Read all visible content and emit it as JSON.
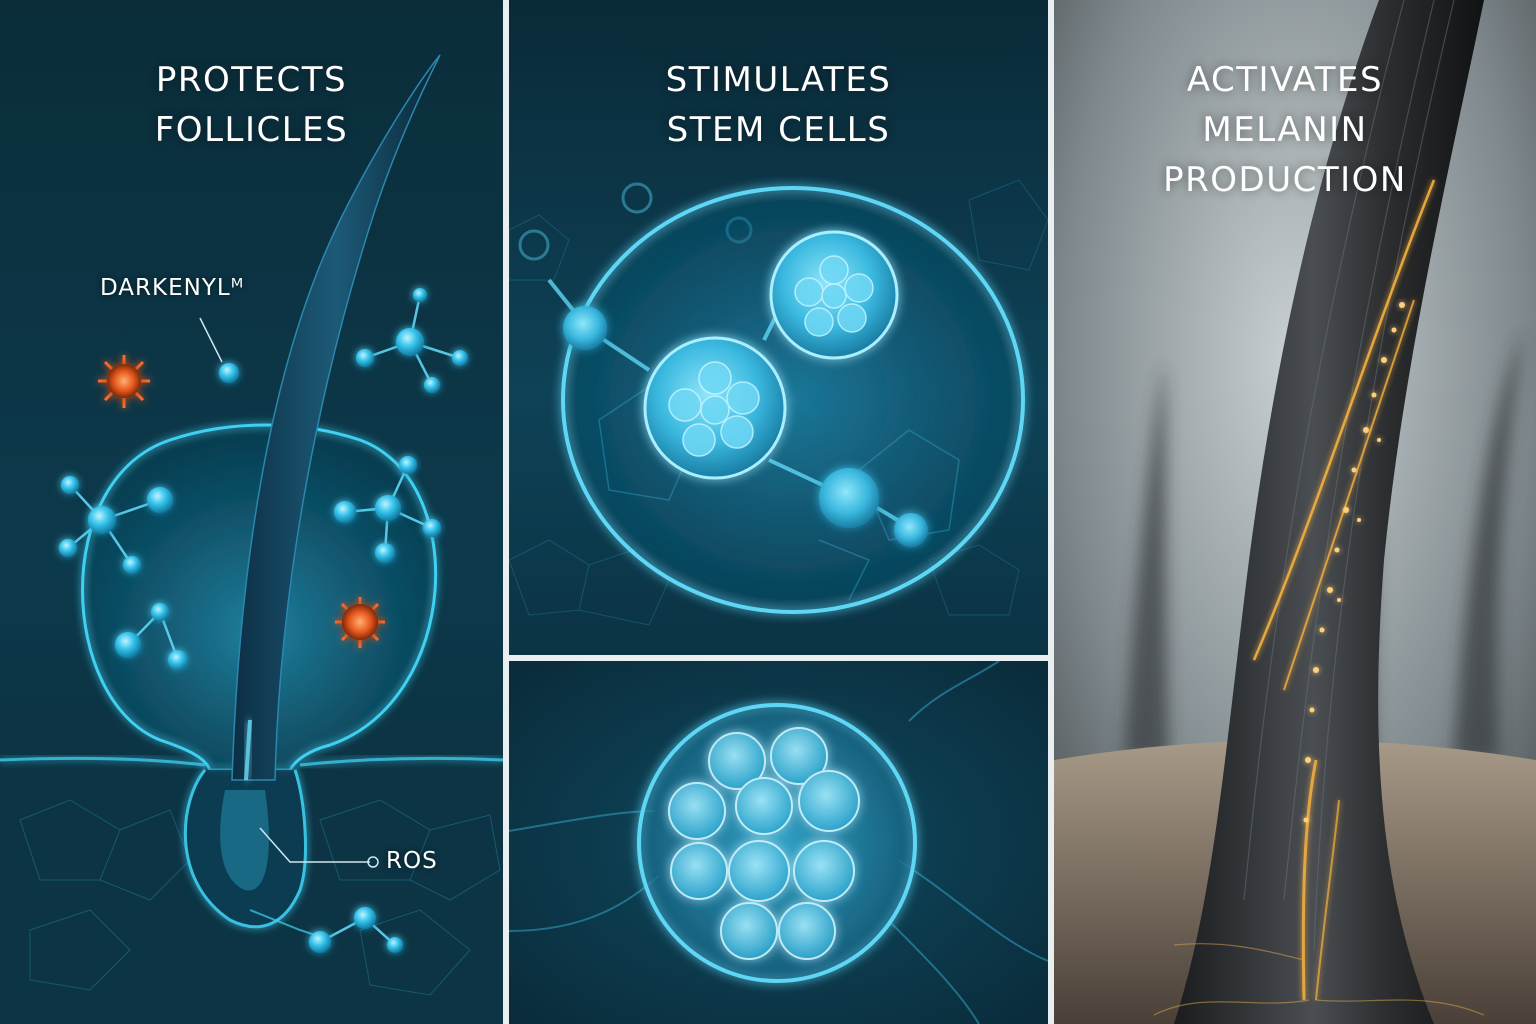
{
  "panels": {
    "protect": {
      "heading_line1": "PROTECTS",
      "heading_line2": "FOLLICLES",
      "label_active": "DARKENYLᴹ",
      "label_ros": "ROS"
    },
    "stem": {
      "heading_line1": "STIMULATES",
      "heading_line2": "STEM CELLS"
    },
    "melanin": {
      "heading_line1": "ACTIVATES",
      "heading_line2": "MELANIN",
      "heading_line3": "PRODUCTION"
    }
  },
  "colors": {
    "background_dark": "#0a2430",
    "cyan_glow": "#3fd0f2",
    "ros_orange": "#ff6a2a",
    "gold_glow": "#f4b040",
    "divider": "#e9eef0"
  },
  "icons": [
    "hair-follicle-icon",
    "molecule-icon",
    "ros-radical-icon",
    "stem-cell-icon",
    "hair-strand-icon"
  ]
}
